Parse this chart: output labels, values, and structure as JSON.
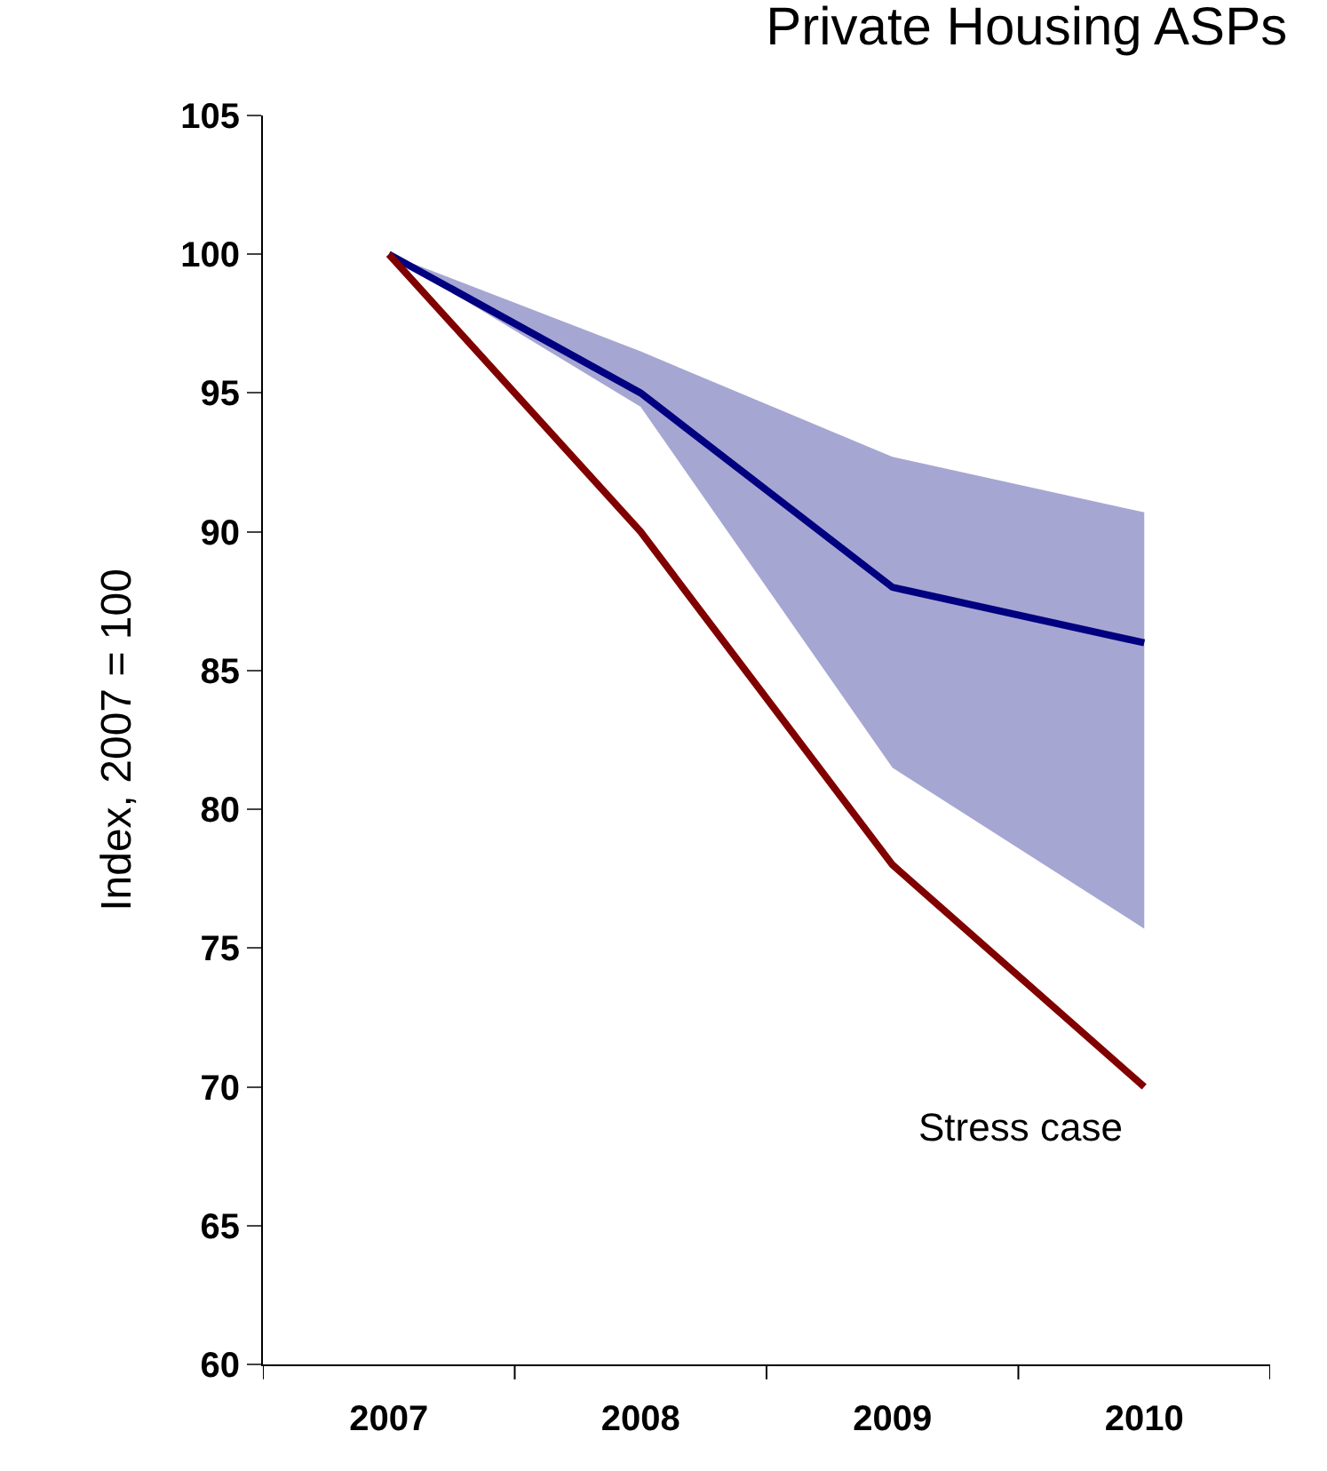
{
  "chart_data": {
    "type": "line",
    "title": "Private Housing ASPs",
    "ylabel": "Index, 2007 = 100",
    "categories": [
      "2007",
      "2008",
      "2009",
      "2010"
    ],
    "series": [
      {
        "color": "#000080",
        "values": [
          100,
          95,
          88,
          86
        ],
        "lower": [
          100,
          94.5,
          81.5,
          75.7
        ],
        "upper": [
          100,
          96.5,
          92.7,
          90.7
        ]
      },
      {
        "name": "Stress case",
        "color": "#800000",
        "values": [
          100,
          90,
          78,
          70
        ]
      }
    ],
    "ylim": [
      60,
      105
    ],
    "yticks": [
      60,
      65,
      70,
      75,
      80,
      85,
      90,
      95,
      100,
      105
    ],
    "legend": false,
    "marker": "none",
    "line_style": "solid"
  }
}
